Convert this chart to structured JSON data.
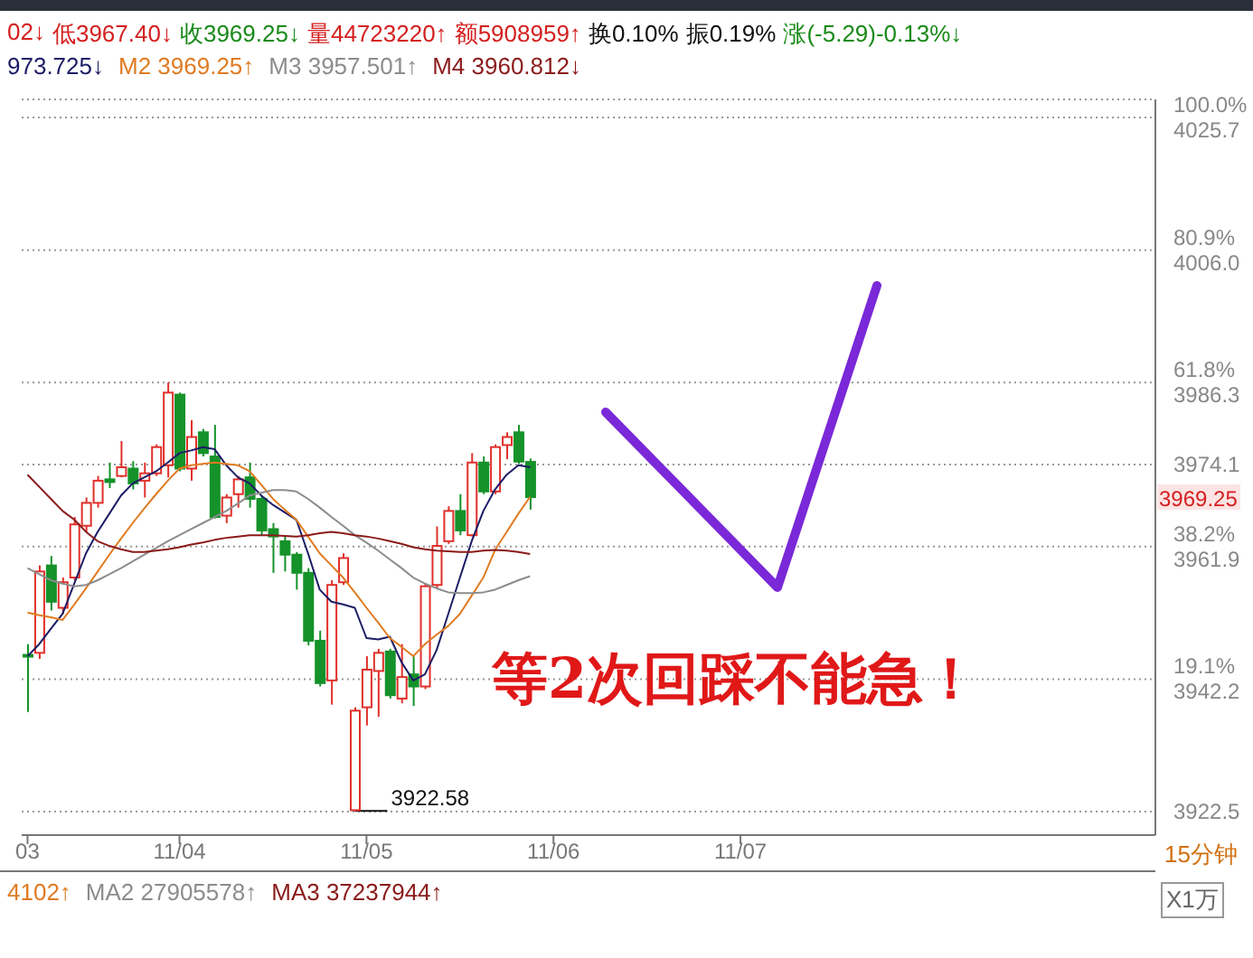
{
  "chart_data": {
    "type": "candlestick",
    "categories": [
      "03",
      null,
      null,
      null,
      null,
      null,
      null,
      null,
      null,
      null,
      null,
      null,
      null,
      "11/04",
      null,
      null,
      null,
      null,
      null,
      null,
      null,
      null,
      null,
      null,
      null,
      null,
      null,
      null,
      null,
      "11/05",
      null,
      null,
      null,
      null,
      null,
      null,
      null,
      null,
      null,
      null,
      null,
      null,
      null,
      null,
      null,
      "11/06",
      null,
      null,
      null,
      null,
      null,
      null,
      null,
      null,
      null,
      null,
      null,
      null,
      null,
      null,
      null,
      "11/07",
      null,
      null,
      null,
      null,
      null,
      null,
      null,
      null,
      null,
      null,
      null,
      null,
      null,
      null,
      null,
      null,
      null,
      null,
      null,
      null,
      null,
      null,
      null,
      null,
      null,
      null,
      null,
      null,
      null,
      null,
      null,
      null,
      null,
      null,
      null
    ],
    "ohlc": [
      [
        3945.8,
        3947.4,
        3937.3,
        3945.6
      ],
      [
        3946.1,
        3959.1,
        3945.2,
        3958.2
      ],
      [
        3959.1,
        3960.5,
        3952.4,
        3953.7
      ],
      [
        3952.8,
        3957.3,
        3951.9,
        3956.6
      ],
      [
        3957.3,
        3966.3,
        3956.9,
        3965.2
      ],
      [
        3965.0,
        3969.2,
        3964.1,
        3968.4
      ],
      [
        3968.4,
        3972.4,
        3967.7,
        3971.7
      ],
      [
        3971.9,
        3974.4,
        3970.6,
        3971.5
      ],
      [
        3972.4,
        3977.6,
        3972.2,
        3973.7
      ],
      [
        3973.5,
        3974.6,
        3970.4,
        3971.3
      ],
      [
        3971.7,
        3974.4,
        3969.2,
        3972.8
      ],
      [
        3972.8,
        3977.1,
        3972.4,
        3976.7
      ],
      [
        3974.0,
        3986.3,
        3972.2,
        3984.8
      ],
      [
        3984.5,
        3984.8,
        3973.1,
        3973.5
      ],
      [
        3973.5,
        3980.7,
        3971.7,
        3978.2
      ],
      [
        3978.9,
        3979.4,
        3975.3,
        3975.8
      ],
      [
        3975.3,
        3980.0,
        3966.1,
        3966.3
      ],
      [
        3966.5,
        3969.7,
        3965.4,
        3969.2
      ],
      [
        3969.7,
        3972.4,
        3967.7,
        3971.9
      ],
      [
        3972.2,
        3974.4,
        3967.7,
        3969.0
      ],
      [
        3969.0,
        3969.5,
        3963.6,
        3964.3
      ],
      [
        3964.5,
        3965.4,
        3958.0,
        3963.4
      ],
      [
        3962.7,
        3963.6,
        3958.2,
        3960.7
      ],
      [
        3960.7,
        3961.1,
        3955.5,
        3958.0
      ],
      [
        3958.0,
        3958.7,
        3947.2,
        3947.9
      ],
      [
        3947.9,
        3949.4,
        3941.1,
        3941.6
      ],
      [
        3942.0,
        3956.9,
        3938.4,
        3956.2
      ],
      [
        3956.6,
        3960.9,
        3956.2,
        3960.2
      ],
      [
        3922.7,
        3938.0,
        3922.58,
        3937.5
      ],
      [
        3938.0,
        3945.6,
        3935.3,
        3943.6
      ],
      [
        3943.4,
        3946.7,
        3936.6,
        3946.1
      ],
      [
        3946.3,
        3946.7,
        3939.3,
        3939.8
      ],
      [
        3939.3,
        3947.4,
        3938.6,
        3942.5
      ],
      [
        3942.9,
        3945.6,
        3938.2,
        3941.1
      ],
      [
        3941.1,
        3956.4,
        3940.7,
        3956.0
      ],
      [
        3956.2,
        3964.9,
        3955.7,
        3962.0
      ],
      [
        3962.7,
        3967.9,
        3962.3,
        3967.2
      ],
      [
        3967.2,
        3969.7,
        3963.6,
        3964.3
      ],
      [
        3963.6,
        3975.8,
        3963.4,
        3974.4
      ],
      [
        3974.4,
        3975.3,
        3969.7,
        3970.1
      ],
      [
        3970.1,
        3977.1,
        3969.7,
        3976.7
      ],
      [
        3977.0,
        3978.9,
        3974.9,
        3978.2
      ],
      [
        3978.9,
        3980.0,
        3974.2,
        3974.54
      ],
      [
        3974.5,
        3975.0,
        3967.4,
        3969.25
      ],
      null,
      null,
      null,
      null,
      null,
      null,
      null,
      null,
      null,
      null,
      null,
      null,
      null,
      null,
      null,
      null,
      null,
      null,
      null,
      null,
      null,
      null,
      null,
      null,
      null,
      null,
      null,
      null,
      null,
      null,
      null,
      null,
      null,
      null,
      null,
      null,
      null,
      null,
      null,
      null,
      null,
      null,
      null,
      null,
      null,
      null,
      null,
      null,
      null,
      null,
      null,
      null,
      null
    ],
    "series": [
      {
        "type": "line",
        "name": "973.725↓",
        "color": "#1c1c66",
        "values": [
          3945.6,
          3947.4,
          3949.7,
          3951.9,
          3956.4,
          3960.9,
          3964.1,
          3966.8,
          3969.5,
          3971.3,
          3972.2,
          3973.1,
          3974.4,
          3975.8,
          3976.2,
          3976.7,
          3976.4,
          3974.0,
          3972.2,
          3971.3,
          3969.5,
          3968.1,
          3967.0,
          3965.9,
          3960.9,
          3955.5,
          3953.7,
          3953.3,
          3952.8,
          3948.3,
          3948.1,
          3948.5,
          3944.7,
          3942.0,
          3942.9,
          3946.5,
          3951.9,
          3957.3,
          3962.7,
          3967.2,
          3970.4,
          3972.6,
          3974.0,
          3973.7,
          null,
          null,
          null,
          null,
          null,
          null,
          null,
          null,
          null,
          null,
          null,
          null,
          null,
          null,
          null,
          null,
          null,
          null,
          null,
          null,
          null,
          null,
          null,
          null,
          null,
          null,
          null,
          null,
          null,
          null,
          null,
          null,
          null,
          null,
          null,
          null,
          null,
          null,
          null,
          null,
          null,
          null,
          null,
          null,
          null,
          null,
          null,
          null,
          null,
          null,
          null,
          null,
          null
        ]
      },
      {
        "type": "line",
        "name": "M2 3969.25↑",
        "color": "#e07b22",
        "values": [
          3952.1,
          3951.7,
          3951.4,
          3951.0,
          3953.3,
          3955.7,
          3958.2,
          3960.7,
          3963.1,
          3965.4,
          3967.6,
          3969.7,
          3971.7,
          3973.5,
          3974.0,
          3974.2,
          3974.4,
          3974.2,
          3974.0,
          3973.1,
          3971.1,
          3969.0,
          3967.4,
          3965.9,
          3963.4,
          3960.9,
          3959.1,
          3957.3,
          3955.1,
          3952.8,
          3950.6,
          3948.3,
          3947.0,
          3945.6,
          3947.4,
          3948.8,
          3950.1,
          3951.9,
          3954.6,
          3957.3,
          3961.4,
          3964.1,
          3966.8,
          3969.3,
          null,
          null,
          null,
          null,
          null,
          null,
          null,
          null,
          null,
          null,
          null,
          null,
          null,
          null,
          null,
          null,
          null,
          null,
          null,
          null,
          null,
          null,
          null,
          null,
          null,
          null,
          null,
          null,
          null,
          null,
          null,
          null,
          null,
          null,
          null,
          null,
          null,
          null,
          null,
          null,
          null,
          null,
          null,
          null,
          null,
          null,
          null,
          null,
          null,
          null,
          null,
          null,
          null
        ]
      },
      {
        "type": "line",
        "name": "M3 3957.501↑",
        "color": "#8c8c8c",
        "values": [
          3958.7,
          3957.8,
          3956.9,
          3956.4,
          3956.0,
          3956.2,
          3956.9,
          3957.8,
          3958.7,
          3959.7,
          3960.7,
          3961.7,
          3962.7,
          3963.6,
          3964.5,
          3965.4,
          3966.3,
          3967.2,
          3968.3,
          3969.5,
          3969.9,
          3970.3,
          3970.3,
          3970.1,
          3969.0,
          3967.7,
          3966.3,
          3965.0,
          3963.6,
          3962.5,
          3961.3,
          3960.0,
          3958.7,
          3957.3,
          3956.4,
          3955.7,
          3955.1,
          3955.0,
          3955.0,
          3955.1,
          3955.5,
          3956.2,
          3956.9,
          3957.5,
          null,
          null,
          null,
          null,
          null,
          null,
          null,
          null,
          null,
          null,
          null,
          null,
          null,
          null,
          null,
          null,
          null,
          null,
          null,
          null,
          null,
          null,
          null,
          null,
          null,
          null,
          null,
          null,
          null,
          null,
          null,
          null,
          null,
          null,
          null,
          null,
          null,
          null,
          null,
          null,
          null,
          null,
          null,
          null,
          null,
          null,
          null,
          null,
          null,
          null,
          null,
          null,
          null
        ]
      },
      {
        "type": "line",
        "name": "M4 3960.812↓",
        "color": "#8b1a1a",
        "values": [
          3972.6,
          3970.8,
          3969.0,
          3967.2,
          3965.9,
          3964.1,
          3962.7,
          3962.0,
          3961.5,
          3961.1,
          3961.1,
          3961.3,
          3961.5,
          3961.8,
          3962.2,
          3962.5,
          3962.9,
          3963.2,
          3963.4,
          3963.6,
          3963.6,
          3963.6,
          3963.5,
          3963.4,
          3963.6,
          3963.9,
          3964.1,
          3963.9,
          3963.6,
          3963.4,
          3963.1,
          3962.7,
          3962.3,
          3961.8,
          3961.5,
          3961.3,
          3961.2,
          3961.1,
          3961.1,
          3961.3,
          3961.4,
          3961.3,
          3961.1,
          3960.8,
          null,
          null,
          null,
          null,
          null,
          null,
          null,
          null,
          null,
          null,
          null,
          null,
          null,
          null,
          null,
          null,
          null,
          null,
          null,
          null,
          null,
          null,
          null,
          null,
          null,
          null,
          null,
          null,
          null,
          null,
          null,
          null,
          null,
          null,
          null,
          null,
          null,
          null,
          null,
          null,
          null,
          null,
          null,
          null,
          null,
          null,
          null,
          null,
          null,
          null,
          null,
          null,
          null
        ]
      }
    ],
    "ylim": [
      3919.0,
      4028.4
    ],
    "yticks": [
      {
        "value": 4025.7,
        "label": "100.0%\n4025.7"
      },
      {
        "value": 4006.0,
        "label": "80.9%\n4006.0"
      },
      {
        "value": 3986.3,
        "label": "61.8%\n3986.3"
      },
      {
        "value": 3974.1,
        "label": "3974.1"
      },
      {
        "value": 3961.9,
        "label": "38.2%\n3961.9"
      },
      {
        "value": 3942.2,
        "label": "19.1%\n3942.2"
      },
      {
        "value": 3922.5,
        "label": "3922.5"
      }
    ],
    "grid": "y",
    "legend": "top left",
    "annotations": [
      "02↓",
      "低3967.40↓",
      "收3969.25↓",
      "量44723220↑",
      "额5908959↑",
      "换0.10%",
      "振0.19%",
      "涨(-5.29)-0.13%↓",
      "4102↑",
      "MA2 27905578↑",
      "MA3 37237944↑",
      "15分钟",
      "X1万",
      "等2次回踩不能急！",
      "3922.58",
      "3969.25"
    ]
  }
}
